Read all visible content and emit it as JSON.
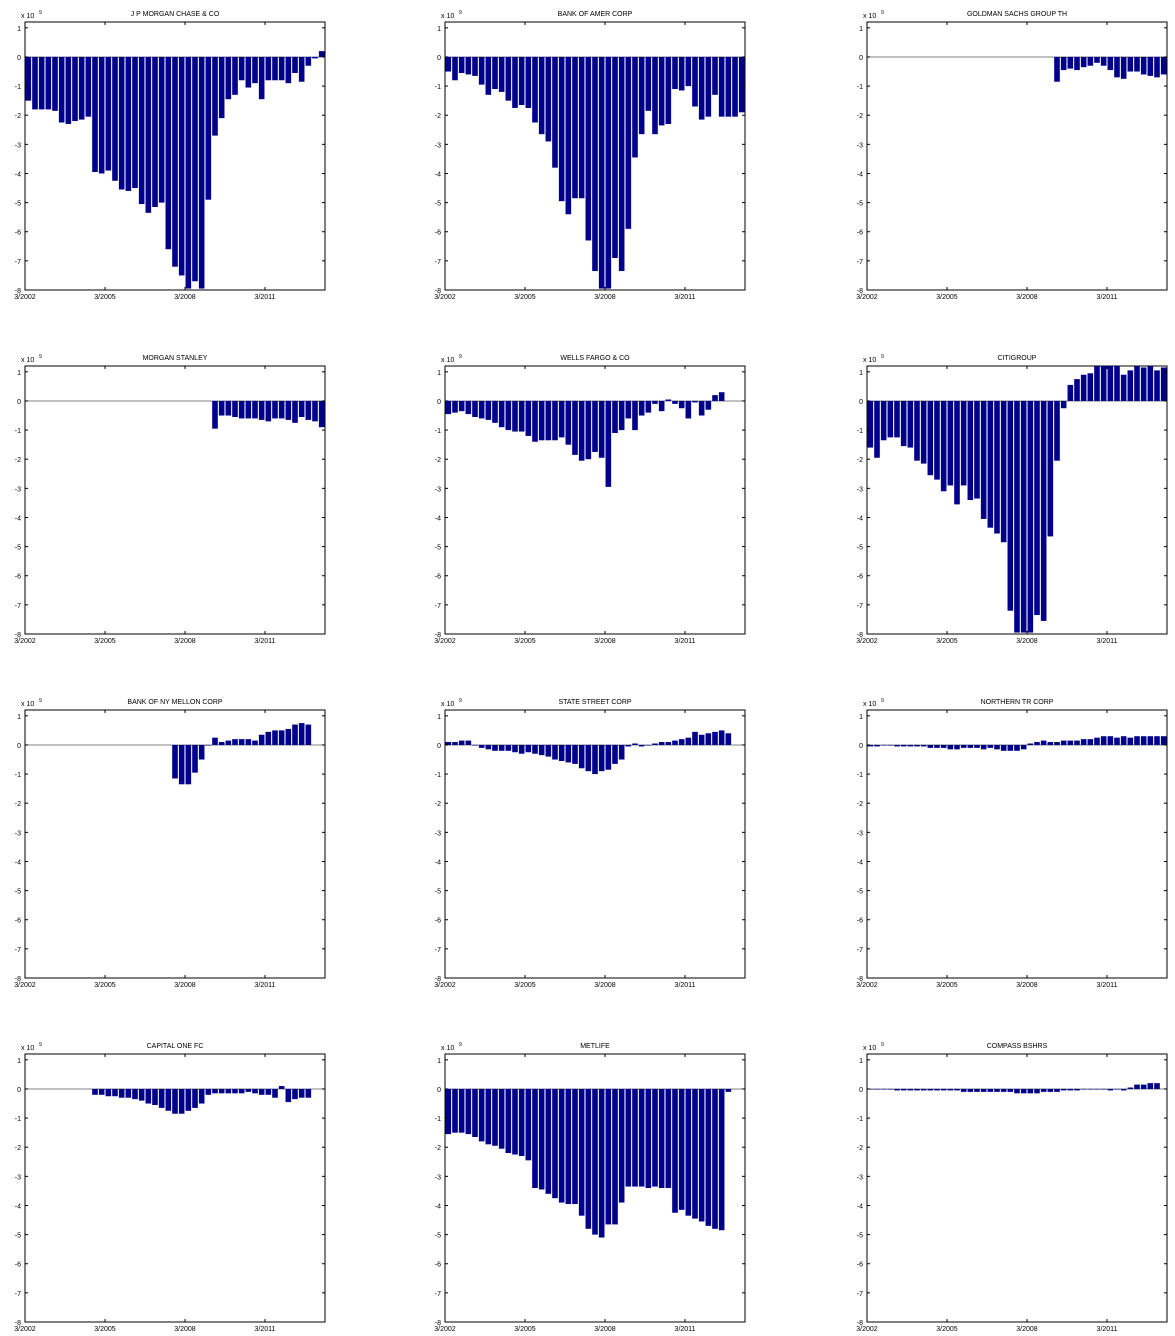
{
  "figure": {
    "accent_color": "#00008B",
    "axis_color": "#000000",
    "zero_line_color": "#808080"
  },
  "chart_data": [
    {
      "type": "bar",
      "title": "J P MORGAN CHASE & CO",
      "exponent_label": "x 10",
      "exponent": "9",
      "x_tick_labels": [
        "3/2002",
        "3/2005",
        "3/2008",
        "3/2011"
      ],
      "y_ticks": [
        1,
        0,
        -1,
        -2,
        -3,
        -4,
        -5,
        -6,
        -7,
        -8
      ],
      "ylim": [
        -8,
        1.2
      ],
      "start_index": 0,
      "values": [
        -1.5,
        -1.8,
        -1.8,
        -1.8,
        -1.85,
        -2.25,
        -2.3,
        -2.2,
        -2.15,
        -2.05,
        -3.95,
        -4.0,
        -3.9,
        -4.25,
        -4.55,
        -4.6,
        -4.5,
        -5.05,
        -5.35,
        -5.15,
        -5.0,
        -6.6,
        -7.2,
        -7.5,
        -7.95,
        -7.7,
        -7.95,
        -4.9,
        -2.7,
        -2.1,
        -1.45,
        -1.3,
        -0.8,
        -1.05,
        -0.9,
        -1.45,
        -0.8,
        -0.8,
        -0.8,
        -0.9,
        -0.55,
        -0.85,
        -0.3,
        -0.05,
        0.2
      ]
    },
    {
      "type": "bar",
      "title": "BANK OF AMER CORP",
      "exponent_label": "x 10",
      "exponent": "9",
      "x_tick_labels": [
        "3/2002",
        "3/2005",
        "3/2008",
        "3/2011"
      ],
      "y_ticks": [
        1,
        0,
        -1,
        -2,
        -3,
        -4,
        -5,
        -6,
        -7,
        -8
      ],
      "ylim": [
        -8,
        1.2
      ],
      "start_index": 0,
      "values": [
        -0.5,
        -0.8,
        -0.55,
        -0.6,
        -0.65,
        -0.95,
        -1.3,
        -1.1,
        -1.2,
        -1.5,
        -1.75,
        -1.65,
        -1.75,
        -2.25,
        -2.65,
        -2.9,
        -3.8,
        -4.95,
        -5.4,
        -4.85,
        -4.85,
        -6.3,
        -7.35,
        -7.95,
        -7.95,
        -6.9,
        -7.35,
        -5.9,
        -3.45,
        -2.65,
        -1.85,
        -2.65,
        -2.35,
        -2.3,
        -1.1,
        -1.15,
        -1.0,
        -1.7,
        -2.15,
        -2.05,
        -1.3,
        -2.05,
        -2.05,
        -2.05,
        -1.9
      ]
    },
    {
      "type": "bar",
      "title": "GOLDMAN SACHS GROUP TH",
      "exponent_label": "x 10",
      "exponent": "9",
      "x_tick_labels": [
        "3/2002",
        "3/2005",
        "3/2008",
        "3/2011"
      ],
      "y_ticks": [
        1,
        0,
        -1,
        -2,
        -3,
        -4,
        -5,
        -6,
        -7,
        -8
      ],
      "ylim": [
        -8,
        1.2
      ],
      "start_index": 28,
      "values": [
        -0.85,
        -0.45,
        -0.4,
        -0.45,
        -0.35,
        -0.3,
        -0.2,
        -0.3,
        -0.45,
        -0.7,
        -0.75,
        -0.5,
        -0.5,
        -0.6,
        -0.65,
        -0.7,
        -0.6
      ]
    },
    {
      "type": "bar",
      "title": "MORGAN STANLEY",
      "exponent_label": "x 10",
      "exponent": "9",
      "x_tick_labels": [
        "3/2002",
        "3/2005",
        "3/2008",
        "3/2011"
      ],
      "y_ticks": [
        1,
        0,
        -1,
        -2,
        -3,
        -4,
        -5,
        -6,
        -7,
        -8
      ],
      "ylim": [
        -8,
        1.2
      ],
      "start_index": 28,
      "values": [
        -0.95,
        -0.5,
        -0.5,
        -0.55,
        -0.6,
        -0.6,
        -0.6,
        -0.65,
        -0.7,
        -0.6,
        -0.6,
        -0.65,
        -0.75,
        -0.55,
        -0.65,
        -0.7,
        -0.9
      ]
    },
    {
      "type": "bar",
      "title": "WELLS FARGO & CO",
      "exponent_label": "x 10",
      "exponent": "9",
      "x_tick_labels": [
        "3/2002",
        "3/2005",
        "3/2008",
        "3/2011"
      ],
      "y_ticks": [
        1,
        0,
        -1,
        -2,
        -3,
        -4,
        -5,
        -6,
        -7,
        -8
      ],
      "ylim": [
        -8,
        1.2
      ],
      "start_index": 0,
      "values": [
        -0.45,
        -0.4,
        -0.35,
        -0.45,
        -0.55,
        -0.6,
        -0.65,
        -0.75,
        -0.9,
        -1.0,
        -1.05,
        -1.05,
        -1.2,
        -1.4,
        -1.35,
        -1.35,
        -1.35,
        -1.25,
        -1.5,
        -1.85,
        -2.05,
        -2.0,
        -1.75,
        -1.95,
        -2.95,
        -1.1,
        -1.0,
        -0.6,
        -1.0,
        -0.5,
        -0.4,
        -0.1,
        -0.35,
        0.05,
        -0.1,
        -0.25,
        -0.6,
        -0.05,
        -0.5,
        -0.3,
        0.2,
        0.3
      ]
    },
    {
      "type": "bar",
      "title": "CITIGROUP",
      "exponent_label": "x 10",
      "exponent": "9",
      "x_tick_labels": [
        "3/2002",
        "3/2005",
        "3/2008",
        "3/2011"
      ],
      "y_ticks": [
        1,
        0,
        -1,
        -2,
        -3,
        -4,
        -5,
        -6,
        -7,
        -8
      ],
      "ylim": [
        -8,
        1.2
      ],
      "start_index": 0,
      "values": [
        -1.6,
        -1.95,
        -1.35,
        -1.25,
        -1.25,
        -1.55,
        -1.6,
        -2.05,
        -2.15,
        -2.55,
        -2.7,
        -3.1,
        -2.9,
        -3.55,
        -2.9,
        -3.4,
        -3.35,
        -4.05,
        -4.35,
        -4.55,
        -4.85,
        -7.2,
        -7.95,
        -7.95,
        -7.95,
        -7.35,
        -7.55,
        -4.65,
        -2.05,
        -0.25,
        0.55,
        0.75,
        0.9,
        0.95,
        1.2,
        1.2,
        1.2,
        1.2,
        0.9,
        1.05,
        1.2,
        1.15,
        1.2,
        1.05,
        1.15
      ]
    },
    {
      "type": "bar",
      "title": "BANK OF NY MELLON CORP",
      "exponent_label": "x 10",
      "exponent": "9",
      "x_tick_labels": [
        "3/2002",
        "3/2005",
        "3/2008",
        "3/2011"
      ],
      "y_ticks": [
        1,
        0,
        -1,
        -2,
        -3,
        -4,
        -5,
        -6,
        -7,
        -8
      ],
      "ylim": [
        -8,
        1.2
      ],
      "start_index": 22,
      "values": [
        -1.15,
        -1.35,
        -1.35,
        -0.95,
        -0.5,
        0.0,
        0.25,
        0.1,
        0.15,
        0.2,
        0.2,
        0.2,
        0.15,
        0.35,
        0.45,
        0.5,
        0.5,
        0.55,
        0.7,
        0.75,
        0.7
      ]
    },
    {
      "type": "bar",
      "title": "STATE STREET CORP",
      "exponent_label": "x 10",
      "exponent": "9",
      "x_tick_labels": [
        "3/2002",
        "3/2005",
        "3/2008",
        "3/2011"
      ],
      "y_ticks": [
        1,
        0,
        -1,
        -2,
        -3,
        -4,
        -5,
        -6,
        -7,
        -8
      ],
      "ylim": [
        -8,
        1.2
      ],
      "start_index": 0,
      "values": [
        0.1,
        0.1,
        0.15,
        0.15,
        0.0,
        -0.1,
        -0.15,
        -0.2,
        -0.2,
        -0.2,
        -0.25,
        -0.3,
        -0.25,
        -0.3,
        -0.35,
        -0.4,
        -0.5,
        -0.55,
        -0.6,
        -0.65,
        -0.8,
        -0.9,
        -1.0,
        -0.9,
        -0.85,
        -0.65,
        -0.5,
        -0.05,
        0.05,
        -0.05,
        0.0,
        0.05,
        0.1,
        0.1,
        0.15,
        0.2,
        0.25,
        0.45,
        0.35,
        0.4,
        0.45,
        0.5,
        0.4
      ]
    },
    {
      "type": "bar",
      "title": "NORTHERN TR CORP",
      "exponent_label": "x 10",
      "exponent": "9",
      "x_tick_labels": [
        "3/2002",
        "3/2005",
        "3/2008",
        "3/2011"
      ],
      "y_ticks": [
        1,
        0,
        -1,
        -2,
        -3,
        -4,
        -5,
        -6,
        -7,
        -8
      ],
      "ylim": [
        -8,
        1.2
      ],
      "start_index": 0,
      "values": [
        -0.05,
        -0.05,
        0.0,
        0.0,
        -0.05,
        -0.05,
        -0.05,
        -0.05,
        -0.05,
        -0.1,
        -0.1,
        -0.1,
        -0.15,
        -0.15,
        -0.1,
        -0.1,
        -0.1,
        -0.15,
        -0.1,
        -0.15,
        -0.2,
        -0.2,
        -0.2,
        -0.15,
        0.05,
        0.1,
        0.15,
        0.1,
        0.1,
        0.15,
        0.15,
        0.15,
        0.2,
        0.2,
        0.25,
        0.3,
        0.3,
        0.25,
        0.3,
        0.25,
        0.3,
        0.3,
        0.3,
        0.3,
        0.3
      ]
    },
    {
      "type": "bar",
      "title": "CAPITAL ONE FC",
      "exponent_label": "x 10",
      "exponent": "9",
      "x_tick_labels": [
        "3/2002",
        "3/2005",
        "3/2008",
        "3/2011"
      ],
      "y_ticks": [
        1,
        0,
        -1,
        -2,
        -3,
        -4,
        -5,
        -6,
        -7,
        -8
      ],
      "ylim": [
        -8,
        1.2
      ],
      "start_index": 10,
      "values": [
        -0.2,
        -0.2,
        -0.25,
        -0.25,
        -0.3,
        -0.3,
        -0.35,
        -0.4,
        -0.5,
        -0.55,
        -0.65,
        -0.75,
        -0.85,
        -0.85,
        -0.75,
        -0.65,
        -0.5,
        -0.2,
        -0.15,
        -0.15,
        -0.15,
        -0.15,
        -0.15,
        -0.1,
        -0.15,
        -0.2,
        -0.2,
        -0.3,
        0.1,
        -0.45,
        -0.35,
        -0.3,
        -0.3
      ]
    },
    {
      "type": "bar",
      "title": "METLIFE",
      "exponent_label": "x 10",
      "exponent": "9",
      "x_tick_labels": [
        "3/2002",
        "3/2005",
        "3/2008",
        "3/2011"
      ],
      "y_ticks": [
        1,
        0,
        -1,
        -2,
        -3,
        -4,
        -5,
        -6,
        -7,
        -8
      ],
      "ylim": [
        -8,
        1.2
      ],
      "start_index": 0,
      "values": [
        -1.55,
        -1.5,
        -1.5,
        -1.55,
        -1.65,
        -1.8,
        -1.9,
        -1.95,
        -2.05,
        -2.2,
        -2.25,
        -2.3,
        -2.45,
        -3.4,
        -3.45,
        -3.6,
        -3.75,
        -3.9,
        -3.95,
        -3.95,
        -4.35,
        -4.8,
        -5.0,
        -5.1,
        -4.65,
        -4.65,
        -3.9,
        -3.35,
        -3.35,
        -3.35,
        -3.4,
        -3.35,
        -3.4,
        -3.4,
        -4.25,
        -4.15,
        -4.35,
        -4.45,
        -4.55,
        -4.7,
        -4.8,
        -4.85,
        -0.1
      ]
    },
    {
      "type": "bar",
      "title": "COMPASS BSHRS",
      "exponent_label": "x 10",
      "exponent": "9",
      "x_tick_labels": [
        "3/2002",
        "3/2005",
        "3/2008",
        "3/2011"
      ],
      "y_ticks": [
        1,
        0,
        -1,
        -2,
        -3,
        -4,
        -5,
        -6,
        -7,
        -8
      ],
      "ylim": [
        -8,
        1.2
      ],
      "start_index": 0,
      "values": [
        0.0,
        0.0,
        0.0,
        0.0,
        -0.05,
        -0.05,
        -0.05,
        -0.05,
        -0.05,
        -0.05,
        -0.05,
        -0.05,
        -0.05,
        -0.05,
        -0.1,
        -0.1,
        -0.1,
        -0.1,
        -0.1,
        -0.1,
        -0.1,
        -0.1,
        -0.15,
        -0.15,
        -0.15,
        -0.15,
        -0.1,
        -0.1,
        -0.1,
        -0.05,
        -0.05,
        -0.05,
        0.0,
        0.0,
        0.0,
        0.0,
        -0.05,
        0.0,
        -0.05,
        0.05,
        0.15,
        0.15,
        0.2,
        0.2
      ]
    }
  ]
}
